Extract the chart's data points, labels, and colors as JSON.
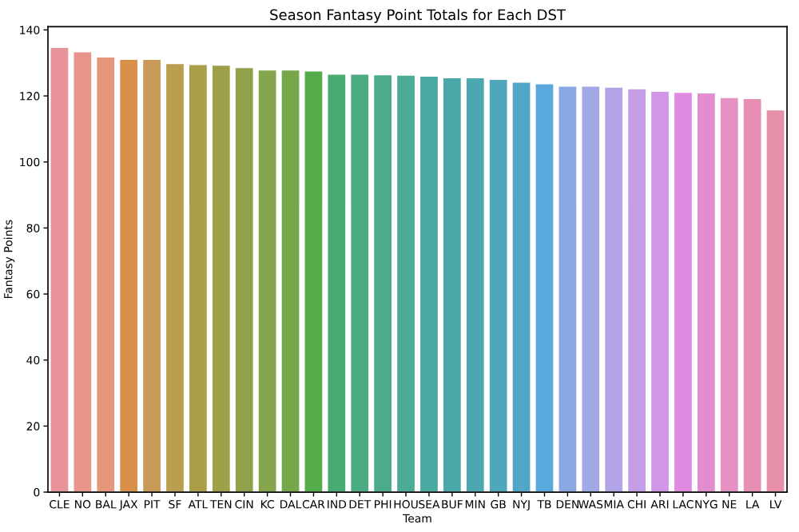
{
  "chart_data": {
    "type": "bar",
    "title": "Season Fantasy Point Totals for Each DST",
    "xlabel": "Team",
    "ylabel": "Fantasy Points",
    "categories": [
      "CLE",
      "NO",
      "BAL",
      "JAX",
      "PIT",
      "SF",
      "ATL",
      "TEN",
      "CIN",
      "KC",
      "DAL",
      "CAR",
      "IND",
      "DET",
      "PHI",
      "HOU",
      "SEA",
      "BUF",
      "MIN",
      "GB",
      "NYJ",
      "TB",
      "DEN",
      "WAS",
      "MIA",
      "CHI",
      "ARI",
      "LAC",
      "NYG",
      "NE",
      "LA",
      "LV"
    ],
    "values": [
      134.7,
      133.4,
      131.8,
      131.1,
      131.1,
      129.8,
      129.5,
      129.3,
      128.6,
      127.9,
      127.9,
      127.6,
      126.6,
      126.6,
      126.4,
      126.3,
      126.0,
      125.5,
      125.5,
      125.0,
      124.2,
      123.7,
      123.0,
      123.0,
      122.7,
      122.2,
      121.4,
      121.1,
      120.9,
      119.5,
      119.2,
      115.8
    ],
    "colors": [
      "#e8939a",
      "#e8958c",
      "#e6967a",
      "#d98f4a",
      "#c89a55",
      "#b89e4e",
      "#aa9f48",
      "#9e9f49",
      "#8fa249",
      "#84a54b",
      "#76a74a",
      "#55ac4a",
      "#4aab72",
      "#4aaa80",
      "#4bab8c",
      "#4aab96",
      "#4aa9a0",
      "#4ba8a8",
      "#4ca7b0",
      "#4fa7bb",
      "#52a7c8",
      "#5aa9dc",
      "#88a8e4",
      "#a0a8e6",
      "#b2a4e6",
      "#c39ee6",
      "#d197e6",
      "#e18ae1",
      "#e38dd0",
      "#e58fc2",
      "#e68fb3",
      "#e690a8"
    ],
    "ylim": [
      0,
      141
    ],
    "yticks": [
      0,
      20,
      40,
      60,
      80,
      100,
      120,
      140
    ],
    "grid": false,
    "legend": false
  }
}
